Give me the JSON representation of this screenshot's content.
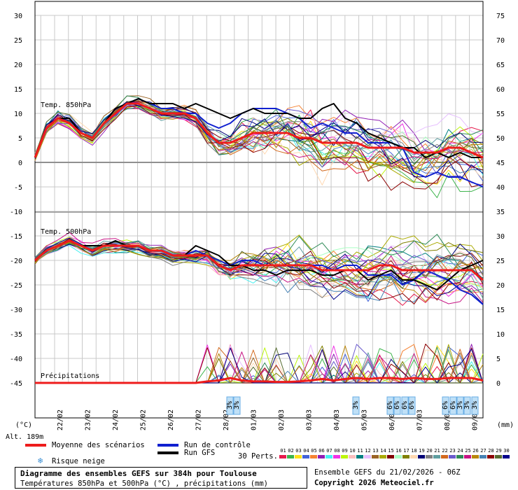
{
  "chart_data": {
    "type": "line",
    "title": "Diagramme des ensembles GEFS sur 384h pour Toulouse",
    "subtitle": "Températures 850hPa et 500hPa (°C) , précipitations (mm)",
    "left_axis": {
      "unit": "(°C)",
      "ticks": [
        30,
        25,
        20,
        15,
        10,
        5,
        0,
        -5,
        -10,
        -15,
        -20,
        -25,
        -30,
        -35,
        -40,
        -45
      ],
      "range": [
        -45,
        30
      ]
    },
    "right_axis": {
      "unit": "(mm)",
      "ticks": [
        75,
        70,
        65,
        60,
        55,
        50,
        45,
        40,
        35,
        30,
        25,
        20,
        15,
        10,
        5,
        0
      ],
      "range": [
        0,
        75
      ]
    },
    "x_labels": [
      "22/02",
      "23/02",
      "24/02",
      "25/02",
      "26/02",
      "27/02",
      "28/02",
      "01/03",
      "02/03",
      "03/03",
      "04/03",
      "05/03",
      "06/03",
      "07/03",
      "08/03",
      "09/03"
    ],
    "panel_labels": {
      "t850": "Temp. 850hPa",
      "t500": "Temp. 500hPa",
      "precip": "Précipitations"
    },
    "mean_850": [
      1,
      7,
      9,
      8,
      6,
      5,
      8,
      10,
      12,
      12,
      11,
      10,
      10,
      10,
      9,
      6,
      4,
      4,
      5,
      6,
      6,
      6,
      6,
      5,
      5,
      4,
      4,
      4,
      4,
      3,
      3,
      3,
      3,
      2,
      2,
      2,
      3,
      3,
      2,
      1
    ],
    "control_850": [
      1,
      7,
      9,
      9,
      6,
      5,
      8,
      11,
      12,
      13,
      12,
      11,
      11,
      10,
      10,
      8,
      7,
      8,
      10,
      11,
      11,
      11,
      10,
      9,
      7,
      8,
      7,
      6,
      6,
      4,
      4,
      4,
      3,
      -2,
      -3,
      -2,
      -3,
      -3,
      -4,
      -5
    ],
    "gfs_850": [
      1,
      7,
      9,
      9,
      6,
      5,
      8,
      11,
      12,
      13,
      12,
      12,
      12,
      11,
      12,
      11,
      10,
      9,
      10,
      11,
      10,
      10,
      10,
      9,
      9,
      11,
      12,
      9,
      8,
      6,
      5,
      4,
      3,
      3,
      1,
      2,
      1,
      2,
      1,
      1
    ],
    "mean_500": [
      -20,
      -18,
      -17,
      -16,
      -17,
      -18,
      -17,
      -17,
      -17,
      -17,
      -18,
      -18,
      -19,
      -19,
      -19,
      -19,
      -21,
      -22,
      -21,
      -21,
      -21,
      -21,
      -21,
      -21,
      -21,
      -22,
      -22,
      -22,
      -22,
      -22,
      -21,
      -21,
      -22,
      -22,
      -22,
      -22,
      -22,
      -22,
      -22,
      -24
    ],
    "control_500": [
      -20,
      -18,
      -17,
      -16,
      -17,
      -17,
      -17,
      -16,
      -17,
      -17,
      -18,
      -18,
      -19,
      -19,
      -18,
      -19,
      -20,
      -21,
      -20,
      -20,
      -21,
      -21,
      -21,
      -21,
      -21,
      -21,
      -22,
      -21,
      -21,
      -23,
      -23,
      -23,
      -25,
      -24,
      -22,
      -23,
      -24,
      -26,
      -27,
      -29
    ],
    "gfs_500": [
      -20,
      -18,
      -17,
      -16,
      -17,
      -17,
      -17,
      -16,
      -17,
      -17,
      -18,
      -18,
      -19,
      -19,
      -17,
      -18,
      -19,
      -21,
      -21,
      -22,
      -22,
      -23,
      -22,
      -22,
      -22,
      -23,
      -23,
      -22,
      -22,
      -24,
      -23,
      -22,
      -24,
      -24,
      -25,
      -26,
      -24,
      -22,
      -21,
      -20
    ],
    "mean_precip": [
      0,
      0,
      0,
      0,
      0,
      0,
      0,
      0,
      0,
      0,
      0,
      0,
      0,
      0,
      0,
      0.3,
      0.5,
      1.0,
      0.5,
      0.3,
      0.3,
      0.2,
      0.2,
      0.3,
      0.5,
      0.8,
      0.5,
      0.8,
      1.0,
      0.8,
      1.0,
      1.0,
      0.8,
      1.0,
      0.8,
      0.8,
      1.0,
      1.0,
      1.0,
      0.5
    ],
    "snow_risk_days": [
      "28/02",
      "04/03",
      "06/03",
      "08/03"
    ],
    "snow_risk_labels": [
      "3%",
      "3%",
      "3%",
      "6%",
      "6%",
      "6%",
      "6%",
      "6%",
      "6%",
      "3%",
      "3%",
      "3%",
      "3%",
      "3%"
    ]
  },
  "legend": {
    "mean": "Moyenne des scénarios",
    "control": "Run de contrôle",
    "gfs": "Run GFS",
    "snow": "Risque neige",
    "perts_label": "30 Perts.",
    "pert_numbers": [
      "01",
      "02",
      "03",
      "04",
      "05",
      "06",
      "07",
      "08",
      "09",
      "10",
      "11",
      "12",
      "13",
      "14",
      "15",
      "16",
      "17",
      "18",
      "19",
      "20",
      "21",
      "22",
      "23",
      "24",
      "25",
      "26",
      "27",
      "28",
      "29",
      "30"
    ],
    "pert_colors": [
      "#e6194b",
      "#3cb44b",
      "#ffe119",
      "#4363d8",
      "#f58231",
      "#911eb4",
      "#46f0f0",
      "#f032e6",
      "#bcf60c",
      "#fabebe",
      "#008080",
      "#e6beff",
      "#9a6324",
      "#aaaa00",
      "#800000",
      "#aaffc3",
      "#808000",
      "#ffd8b1",
      "#000075",
      "#808080",
      "#5f9ea0",
      "#d2691e",
      "#6a5acd",
      "#2e8b57",
      "#c71585",
      "#b8860b",
      "#4682b4",
      "#8b0000",
      "#556b2f",
      "#00008b"
    ]
  },
  "colors": {
    "mean": "#ee1c1c",
    "control": "#1020d0",
    "gfs": "#000000",
    "snow": "#6aaee6"
  },
  "footer": {
    "title": "Diagramme des ensembles GEFS sur 384h pour Toulouse",
    "subtitle": "Températures 850hPa et 500hPa (°C) , précipitations (mm)",
    "run": "Ensemble GEFS du 21/02/2026 - 06Z",
    "copyright": "Copyright 2026 Meteociel.fr"
  },
  "altitude": "Alt. 189m",
  "unit_left": "(°C)",
  "unit_right": "(mm)"
}
